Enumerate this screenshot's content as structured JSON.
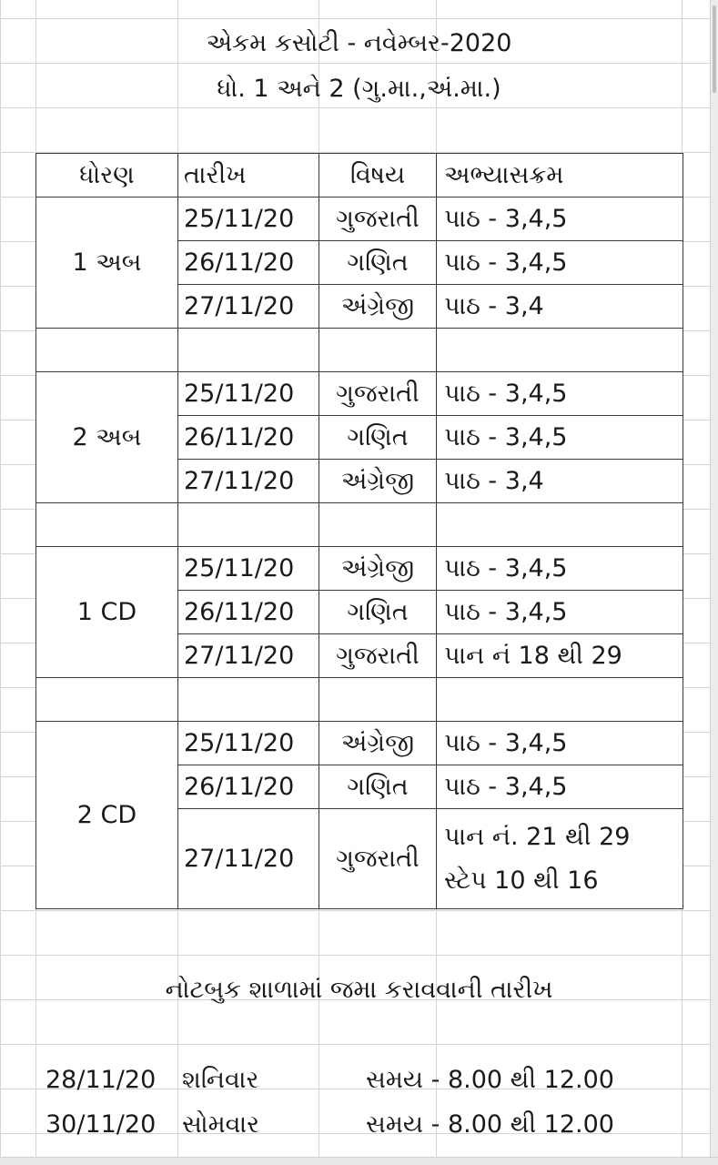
{
  "title": {
    "line1": "એકમ કસોટી - નવેમ્બર-2020",
    "line2": "ધો. 1 અને 2 (ગુ.મા.,અં.મા.)"
  },
  "table": {
    "headers": [
      "ધોરણ",
      "તારીખ",
      "વિષય",
      "અભ્યાસક્રમ"
    ],
    "groups": [
      {
        "std": "1 અબ",
        "rows": [
          {
            "date": "25/11/20",
            "subject": "ગુજરાતી",
            "syllabus": "પાઠ - 3,4,5"
          },
          {
            "date": "26/11/20",
            "subject": "ગણિત",
            "syllabus": "પાઠ - 3,4,5"
          },
          {
            "date": "27/11/20",
            "subject": "અંગ્રેજી",
            "syllabus": "પાઠ - 3,4"
          }
        ]
      },
      {
        "std": "2 અબ",
        "rows": [
          {
            "date": "25/11/20",
            "subject": "ગુજરાતી",
            "syllabus": "પાઠ - 3,4,5"
          },
          {
            "date": "26/11/20",
            "subject": "ગણિત",
            "syllabus": "પાઠ - 3,4,5"
          },
          {
            "date": "27/11/20",
            "subject": "અંગ્રેજી",
            "syllabus": "પાઠ - 3,4"
          }
        ]
      },
      {
        "std": "1 CD",
        "rows": [
          {
            "date": "25/11/20",
            "subject": "અંગ્રેજી",
            "syllabus": "પાઠ - 3,4,5"
          },
          {
            "date": "26/11/20",
            "subject": "ગણિત",
            "syllabus": "પાઠ - 3,4,5"
          },
          {
            "date": "27/11/20",
            "subject": "ગુજરાતી",
            "syllabus": "પાન નં 18 થી 29"
          }
        ]
      },
      {
        "std": "2 CD",
        "rows": [
          {
            "date": "25/11/20",
            "subject": "અંગ્રેજી",
            "syllabus": "પાઠ - 3,4,5"
          },
          {
            "date": "26/11/20",
            "subject": "ગણિત",
            "syllabus": "પાઠ - 3,4,5"
          },
          {
            "date": "27/11/20",
            "subject": "ગુજરાતી",
            "syllabus": "પાન નં. 21 થી 29",
            "syllabus2": "સ્ટેપ 10 થી 16"
          }
        ]
      }
    ]
  },
  "notice": "નોટબુક શાળામાં જમા કરાવવાની તારીખ",
  "submissions": [
    {
      "date": "28/11/20",
      "day": "શનિવાર",
      "time": "સમય - 8.00 થી 12.00"
    },
    {
      "date": "30/11/20",
      "day": "સોમવાર",
      "time": "સમય - 8.00 થી 12.00"
    }
  ]
}
